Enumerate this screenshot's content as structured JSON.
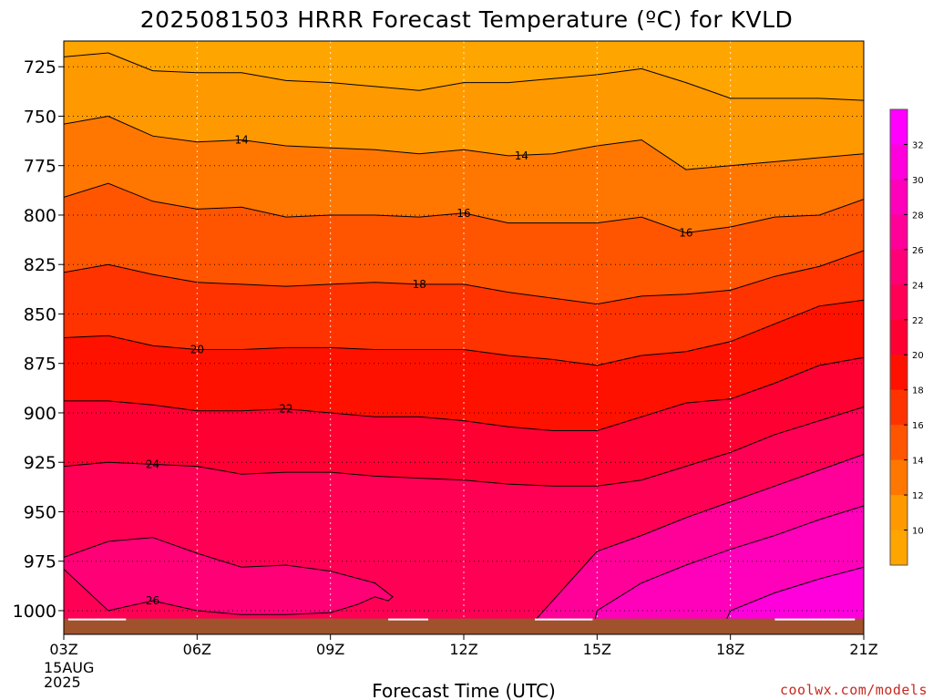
{
  "chart_data": {
    "type": "area",
    "title": "2025081503 HRRR Forecast Temperature (ºC) for KVLD",
    "xlabel": "Forecast Time (UTC)",
    "ylabel": "",
    "x_ticks": [
      "03Z",
      "06Z",
      "09Z",
      "12Z",
      "15Z",
      "18Z",
      "21Z"
    ],
    "x_start_date": [
      "15AUG",
      "2025"
    ],
    "y_ticks": [
      725,
      750,
      775,
      800,
      825,
      850,
      875,
      900,
      925,
      950,
      975,
      1000
    ],
    "ylim": [
      1012,
      712
    ],
    "xlim": [
      3,
      21
    ],
    "y_inverted": true,
    "grid": true,
    "surface_color": "#a0522d",
    "contour_interval": 2,
    "isotherms": [
      {
        "value": 12,
        "points": [
          [
            3,
            720
          ],
          [
            4,
            718
          ],
          [
            5,
            727
          ],
          [
            6,
            728
          ],
          [
            7,
            728
          ],
          [
            8,
            732
          ],
          [
            9,
            733
          ],
          [
            10,
            735
          ],
          [
            11,
            737
          ],
          [
            12,
            733
          ],
          [
            13,
            733
          ],
          [
            14,
            731
          ],
          [
            15,
            729
          ],
          [
            16,
            726
          ],
          [
            17,
            733
          ],
          [
            18,
            741
          ],
          [
            19,
            741
          ],
          [
            20,
            741
          ],
          [
            21,
            742
          ]
        ]
      },
      {
        "value": 14,
        "points": [
          [
            3,
            754
          ],
          [
            4,
            750
          ],
          [
            5,
            760
          ],
          [
            6,
            763
          ],
          [
            7,
            762
          ],
          [
            8,
            765
          ],
          [
            9,
            766
          ],
          [
            10,
            767
          ],
          [
            11,
            769
          ],
          [
            12,
            767
          ],
          [
            13,
            770
          ],
          [
            14,
            769
          ],
          [
            15,
            765
          ],
          [
            16,
            762
          ],
          [
            17,
            777
          ],
          [
            18,
            775
          ],
          [
            19,
            773
          ],
          [
            20,
            771
          ],
          [
            21,
            769
          ]
        ]
      },
      {
        "value": 16,
        "points": [
          [
            3,
            791
          ],
          [
            4,
            784
          ],
          [
            5,
            793
          ],
          [
            6,
            797
          ],
          [
            7,
            796
          ],
          [
            8,
            801
          ],
          [
            9,
            800
          ],
          [
            10,
            800
          ],
          [
            11,
            801
          ],
          [
            12,
            799
          ],
          [
            13,
            804
          ],
          [
            14,
            804
          ],
          [
            15,
            804
          ],
          [
            16,
            801
          ],
          [
            17,
            809
          ],
          [
            18,
            806
          ],
          [
            19,
            801
          ],
          [
            20,
            800
          ],
          [
            21,
            792
          ]
        ]
      },
      {
        "value": 18,
        "points": [
          [
            3,
            829
          ],
          [
            4,
            825
          ],
          [
            5,
            830
          ],
          [
            6,
            834
          ],
          [
            7,
            835
          ],
          [
            8,
            836
          ],
          [
            9,
            835
          ],
          [
            10,
            834
          ],
          [
            11,
            835
          ],
          [
            12,
            835
          ],
          [
            13,
            839
          ],
          [
            14,
            842
          ],
          [
            15,
            845
          ],
          [
            16,
            841
          ],
          [
            17,
            840
          ],
          [
            18,
            838
          ],
          [
            19,
            831
          ],
          [
            20,
            826
          ],
          [
            21,
            818
          ]
        ]
      },
      {
        "value": 20,
        "points": [
          [
            3,
            862
          ],
          [
            4,
            861
          ],
          [
            5,
            866
          ],
          [
            6,
            868
          ],
          [
            7,
            868
          ],
          [
            8,
            867
          ],
          [
            9,
            867
          ],
          [
            10,
            868
          ],
          [
            11,
            868
          ],
          [
            12,
            868
          ],
          [
            13,
            871
          ],
          [
            14,
            873
          ],
          [
            15,
            876
          ],
          [
            16,
            871
          ],
          [
            17,
            869
          ],
          [
            18,
            864
          ],
          [
            19,
            855
          ],
          [
            20,
            846
          ],
          [
            21,
            843
          ]
        ]
      },
      {
        "value": 22,
        "points": [
          [
            3,
            894
          ],
          [
            4,
            894
          ],
          [
            5,
            896
          ],
          [
            6,
            899
          ],
          [
            7,
            899
          ],
          [
            8,
            898
          ],
          [
            9,
            900
          ],
          [
            10,
            902
          ],
          [
            11,
            902
          ],
          [
            12,
            904
          ],
          [
            13,
            907
          ],
          [
            14,
            909
          ],
          [
            15,
            909
          ],
          [
            16,
            902
          ],
          [
            17,
            895
          ],
          [
            18,
            893
          ],
          [
            19,
            885
          ],
          [
            20,
            876
          ],
          [
            21,
            872
          ]
        ]
      },
      {
        "value": 24,
        "points": [
          [
            3,
            927
          ],
          [
            4,
            925
          ],
          [
            5,
            926
          ],
          [
            6,
            927
          ],
          [
            7,
            931
          ],
          [
            8,
            930
          ],
          [
            9,
            930
          ],
          [
            10,
            932
          ],
          [
            11,
            933
          ],
          [
            12,
            934
          ],
          [
            13,
            936
          ],
          [
            14,
            937
          ],
          [
            15,
            937
          ],
          [
            16,
            934
          ],
          [
            17,
            927
          ],
          [
            18,
            920
          ],
          [
            19,
            911
          ],
          [
            20,
            904
          ],
          [
            21,
            897
          ]
        ]
      },
      {
        "value": 26,
        "points": [
          [
            3,
            973
          ],
          [
            4,
            965
          ],
          [
            5,
            963
          ],
          [
            6,
            971
          ],
          [
            7,
            978
          ],
          [
            8,
            977
          ],
          [
            9,
            980
          ],
          [
            10,
            986
          ],
          [
            10.4,
            993
          ],
          [
            10.3,
            995
          ],
          [
            10,
            993
          ],
          [
            9.6,
            997
          ],
          [
            9,
            1001
          ],
          [
            8,
            1002
          ],
          [
            7,
            1002
          ],
          [
            6,
            1000
          ],
          [
            5,
            995
          ],
          [
            4,
            1000
          ],
          [
            3,
            979
          ]
        ]
      },
      {
        "value": 28,
        "points": [
          [
            13.4,
            1010
          ],
          [
            14,
            995
          ],
          [
            15,
            970
          ],
          [
            16,
            962
          ],
          [
            17,
            953
          ],
          [
            18,
            945
          ],
          [
            19,
            937
          ],
          [
            20,
            929
          ],
          [
            21,
            921
          ]
        ]
      },
      {
        "value": 30,
        "points": [
          [
            14.9,
            1010
          ],
          [
            15,
            1000
          ],
          [
            16,
            986
          ],
          [
            17,
            977
          ],
          [
            18,
            969
          ],
          [
            19,
            962
          ],
          [
            20,
            954
          ],
          [
            21,
            947
          ]
        ]
      },
      {
        "value": 32,
        "points": [
          [
            17.8,
            1010
          ],
          [
            18,
            1000
          ],
          [
            19,
            991
          ],
          [
            20,
            984
          ],
          [
            21,
            978
          ]
        ]
      }
    ],
    "contour_labels": [
      {
        "text": "14",
        "x": 7,
        "y": 762
      },
      {
        "text": "14",
        "x": 13.3,
        "y": 770
      },
      {
        "text": "16",
        "x": 12,
        "y": 799
      },
      {
        "text": "16",
        "x": 17,
        "y": 809
      },
      {
        "text": "18",
        "x": 11,
        "y": 835
      },
      {
        "text": "20",
        "x": 6,
        "y": 868
      },
      {
        "text": "22",
        "x": 8,
        "y": 898
      },
      {
        "text": "24",
        "x": 5,
        "y": 926
      },
      {
        "text": "26",
        "x": 5,
        "y": 995
      }
    ],
    "colorbar": {
      "ticks": [
        "32",
        "30",
        "28",
        "26",
        "24",
        "22",
        "20",
        "18",
        "16",
        "14",
        "12",
        "10"
      ],
      "colors": [
        "#ff00ff",
        "#ff00dd",
        "#ff00bb",
        "#ff0099",
        "#ff0077",
        "#ff0055",
        "#ff0033",
        "#ff1100",
        "#ff3300",
        "#ff5500",
        "#ff7700",
        "#ff9900",
        "#ffa500"
      ]
    }
  },
  "credit": "coolwx.com/models"
}
